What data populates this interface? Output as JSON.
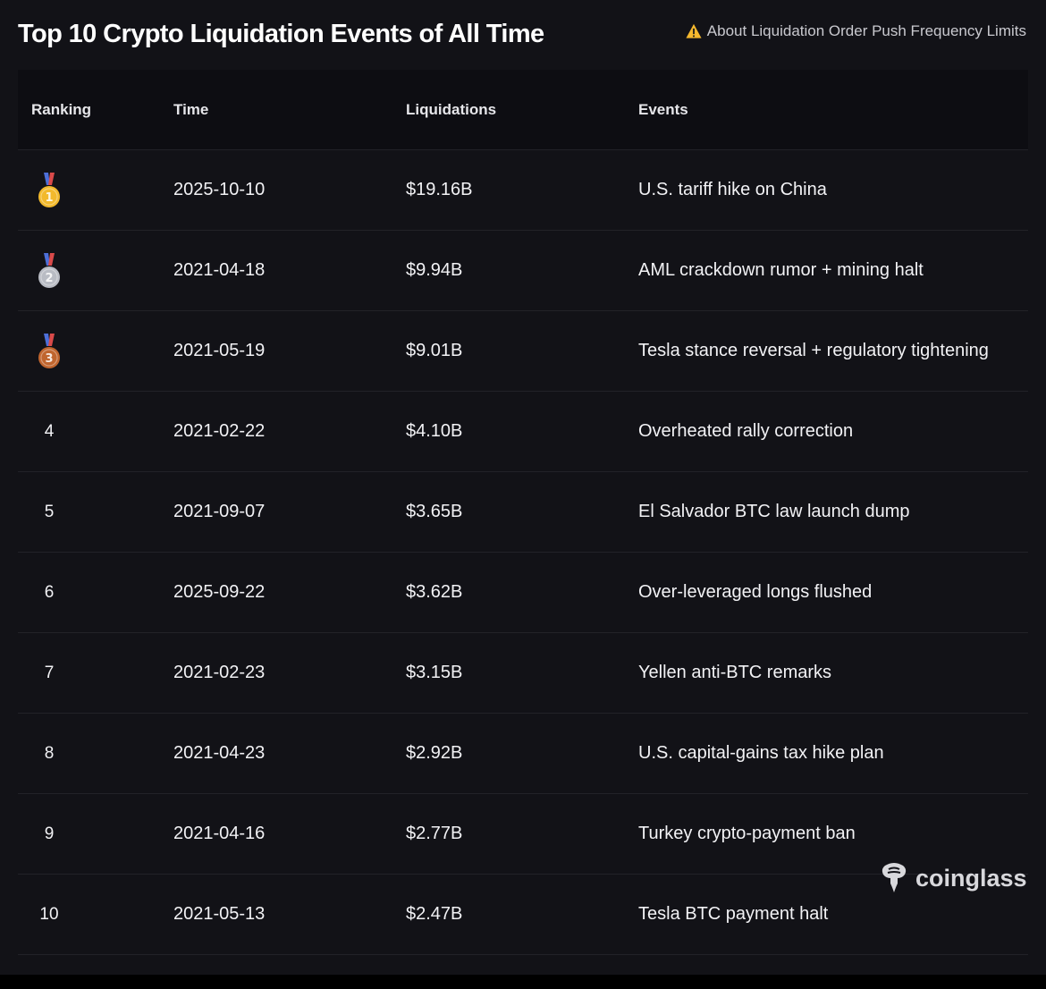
{
  "header": {
    "title": "Top 10 Crypto Liquidation Events of All Time",
    "notice": "About Liquidation Order Push Frequency Limits",
    "notice_icon": "warning-icon"
  },
  "columns": {
    "ranking": "Ranking",
    "time": "Time",
    "liquidations": "Liquidations",
    "events": "Events"
  },
  "rows": [
    {
      "rank": "1",
      "medal": "gold",
      "time": "2025-10-10",
      "liquidations": "$19.16B",
      "event": "U.S. tariff hike on China"
    },
    {
      "rank": "2",
      "medal": "silver",
      "time": "2021-04-18",
      "liquidations": "$9.94B",
      "event": "AML crackdown rumor + mining halt"
    },
    {
      "rank": "3",
      "medal": "bronze",
      "time": "2021-05-19",
      "liquidations": "$9.01B",
      "event": "Tesla stance reversal + regulatory tightening"
    },
    {
      "rank": "4",
      "time": "2021-02-22",
      "liquidations": "$4.10B",
      "event": "Overheated rally correction"
    },
    {
      "rank": "5",
      "time": "2021-09-07",
      "liquidations": "$3.65B",
      "event": "El Salvador BTC law launch dump"
    },
    {
      "rank": "6",
      "time": "2025-09-22",
      "liquidations": "$3.62B",
      "event": "Over-leveraged longs flushed"
    },
    {
      "rank": "7",
      "time": "2021-02-23",
      "liquidations": "$3.15B",
      "event": "Yellen anti-BTC remarks"
    },
    {
      "rank": "8",
      "time": "2021-04-23",
      "liquidations": "$2.92B",
      "event": "U.S. capital-gains tax hike plan"
    },
    {
      "rank": "9",
      "time": "2021-04-16",
      "liquidations": "$2.77B",
      "event": "Turkey crypto-payment ban"
    },
    {
      "rank": "10",
      "time": "2021-05-13",
      "liquidations": "$2.47B",
      "event": "Tesla BTC payment halt"
    }
  ],
  "medal_colors": {
    "gold": "#f2b92c",
    "silver": "#b9bcc4",
    "bronze": "#c0652e",
    "ribbon_blue": "#4d6fd8",
    "ribbon_red": "#d94a4a"
  },
  "watermark": {
    "text": "coinglass",
    "icon": "coinglass-logo-icon"
  }
}
